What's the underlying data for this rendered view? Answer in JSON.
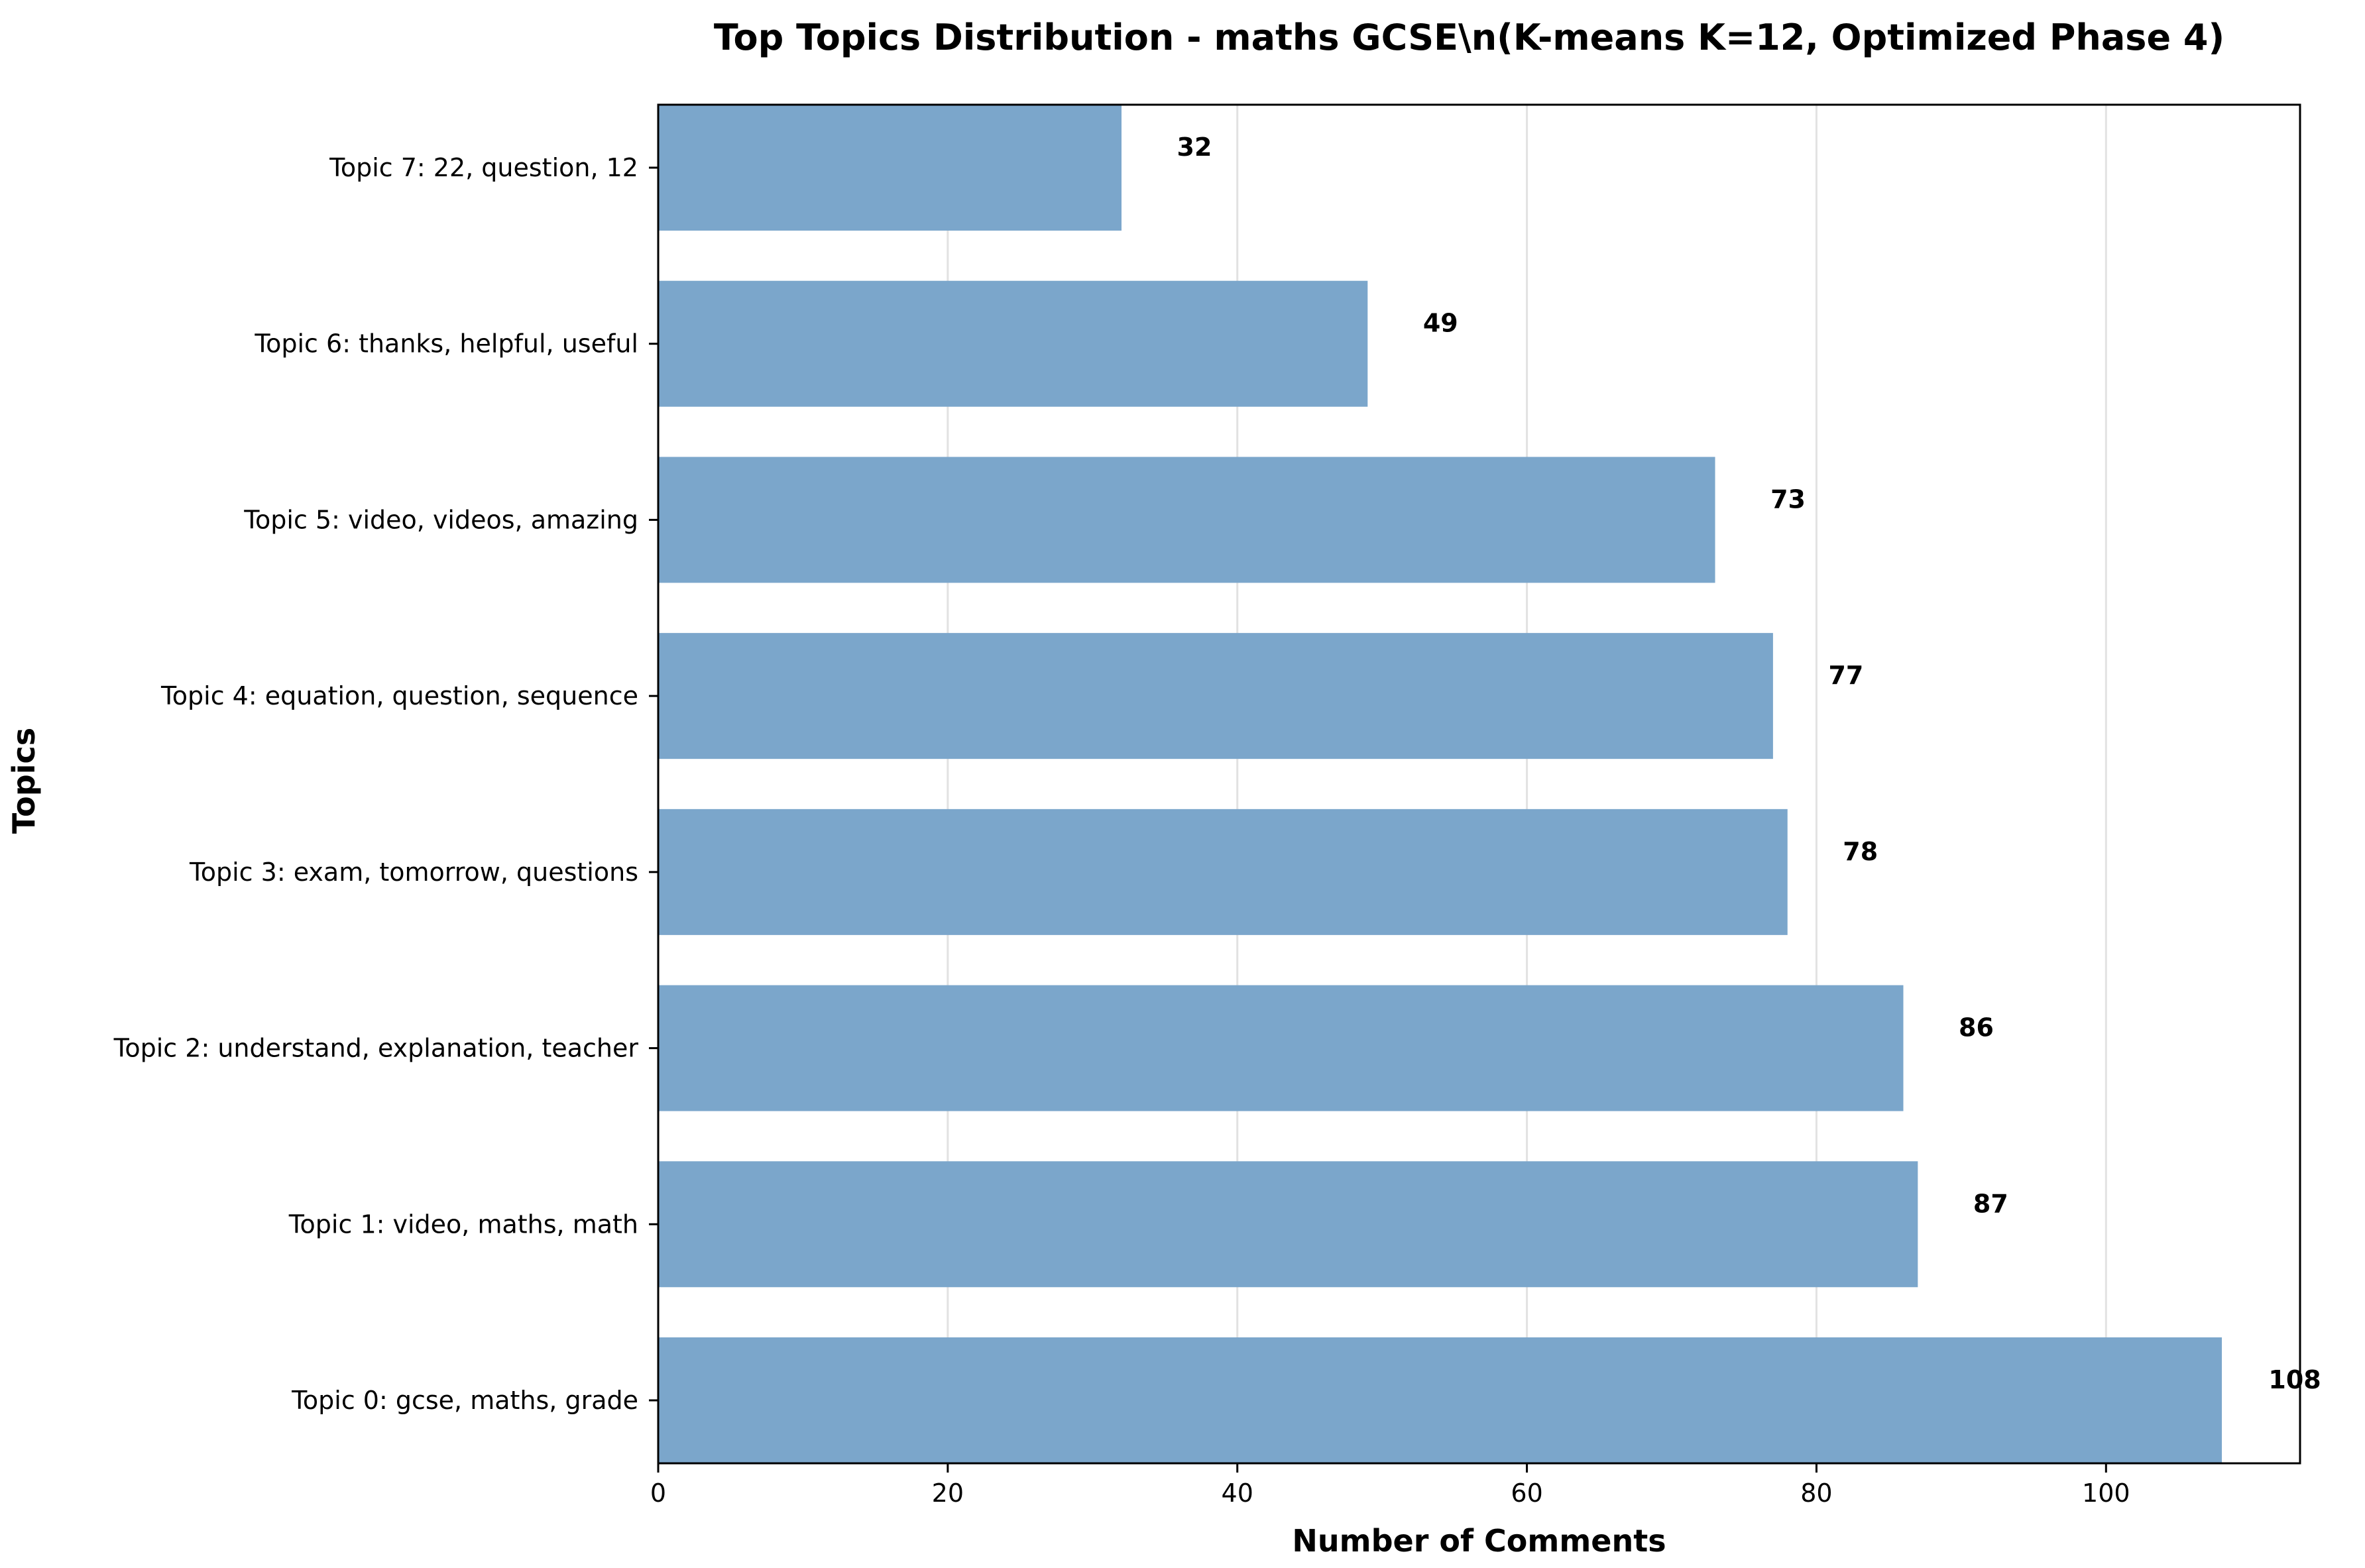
{
  "colors": {
    "bar": "#7ba6cb",
    "grid": "#e2e2e2",
    "axis": "#000000",
    "background": "#ffffff"
  },
  "chart_data": {
    "type": "bar",
    "orientation": "horizontal",
    "title": "Top Topics Distribution - maths GCSE\\n(K-means K=12, Optimized Phase 4)",
    "xlabel": "Number of Comments",
    "ylabel": "Topics",
    "categories": [
      "Topic 0: gcse, maths, grade",
      "Topic 1: video, maths, math",
      "Topic 2: understand, explanation, teacher",
      "Topic 3: exam, tomorrow, questions",
      "Topic 4: equation, question, sequence",
      "Topic 5: video, videos, amazing",
      "Topic 6: thanks, helpful, useful",
      "Topic 7: 22, question, 12"
    ],
    "values": [
      108,
      87,
      86,
      78,
      77,
      73,
      49,
      32
    ],
    "xticks": [
      0,
      20,
      40,
      60,
      80,
      100
    ],
    "xlim": [
      0,
      113.4
    ],
    "grid": "x-axis vertical lines",
    "legend": "none"
  }
}
